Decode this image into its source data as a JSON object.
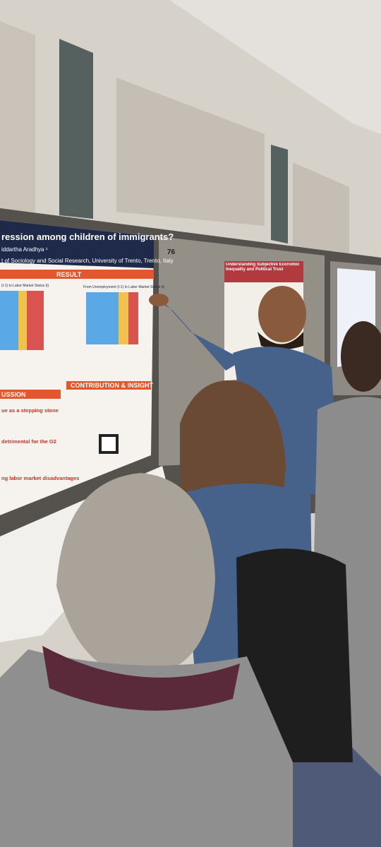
{
  "scene": {
    "poster": {
      "title": "ression among children of immigrants?",
      "author": "iddartha Aradhya ¹",
      "affiliation": "t of Sociology and Social Research, University of Trento, Trento, Italy",
      "result_heading": "RESULT",
      "contribution_heading": "CONTRIBUTION & INSIGHT",
      "discussion_heading": "USSION",
      "left_chart_title": "(t-1) to Labor Market Status (t)",
      "right_chart_title": "From Unemployment (t-1) to Labor Market Status (t)",
      "discussion_points": [
        "ue as a stepping stone",
        "detrimental for the G2",
        "ng labor market disadvantages"
      ]
    },
    "board_number": "76",
    "second_poster_title": "Understanding Subjective Economic Inequality and Political Trust"
  }
}
